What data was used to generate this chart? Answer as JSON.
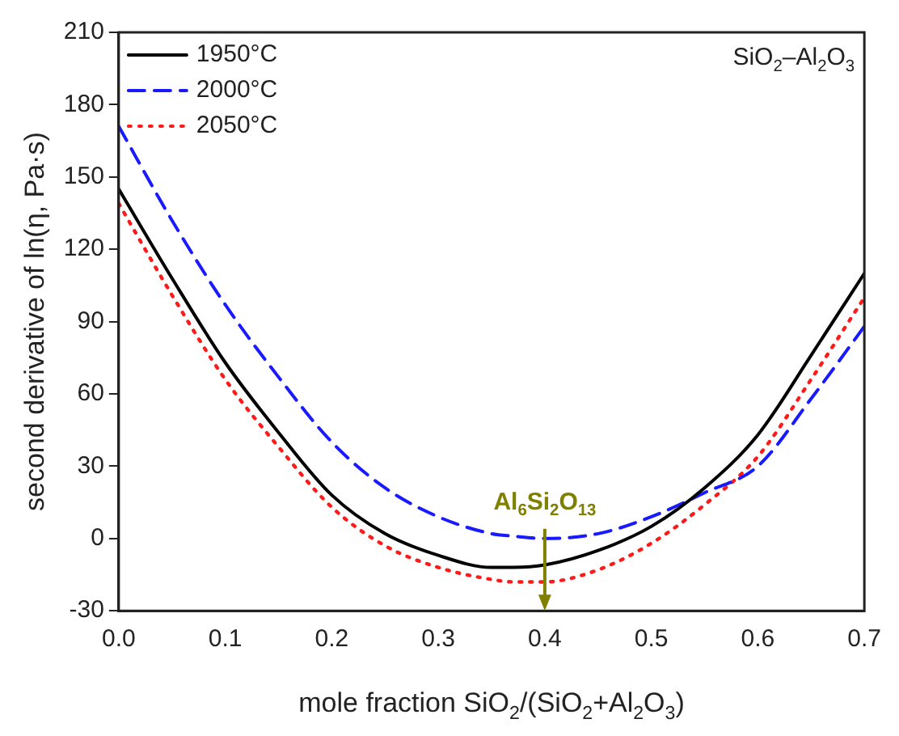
{
  "chart_data": {
    "type": "line",
    "xlabel": "mole fraction SiO$_{2}$/(SiO$_{2}$+Al$_{2}$O$_{3}$)",
    "ylabel": "second derivative of ln(η, Pa·s)",
    "x": [
      0,
      0.05,
      0.1,
      0.15,
      0.2,
      0.25,
      0.3,
      0.35,
      0.37,
      0.4,
      0.45,
      0.5,
      0.55,
      0.6,
      0.65,
      0.7
    ],
    "series": [
      {
        "name": "1950°C",
        "color": "#000000",
        "line_style": "solid",
        "values": [
          145,
          108,
          73,
          44,
          18,
          2,
          -7,
          -12,
          -12,
          -11,
          -5,
          5,
          21,
          43,
          76,
          110
        ]
      },
      {
        "name": "2000°C",
        "color": "#1a1aff",
        "line_style": "dashed",
        "values": [
          171,
          132,
          97,
          67,
          40,
          21,
          9,
          2,
          1,
          0,
          2,
          9,
          19,
          30,
          58,
          88
        ]
      },
      {
        "name": "2050°C",
        "color": "#ff1a1a",
        "line_style": "dotted",
        "values": [
          139,
          101,
          66,
          38,
          13,
          -3,
          -12,
          -17,
          -18,
          -18,
          -13,
          -2,
          14,
          34,
          66,
          100
        ]
      }
    ],
    "xlim": [
      0,
      0.7
    ],
    "xticks": [
      {
        "value": 0,
        "label": "0.0"
      },
      {
        "value": 0.1,
        "label": "0.1"
      },
      {
        "value": 0.2,
        "label": "0.2"
      },
      {
        "value": 0.3,
        "label": "0.3"
      },
      {
        "value": 0.4,
        "label": "0.4"
      },
      {
        "value": 0.5,
        "label": "0.5"
      },
      {
        "value": 0.6,
        "label": "0.6"
      },
      {
        "value": 0.7,
        "label": "0.7"
      }
    ],
    "ylim": [
      -30,
      210
    ],
    "yticks": [
      -30,
      0,
      30,
      60,
      90,
      120,
      150,
      180,
      210
    ],
    "grid": false,
    "legend": "top left",
    "marker": "none",
    "annotations": [
      "SiO$_{2}$–Al$_{2}$O$_{3}$",
      "Al$_{6}$Si$_{2}$O$_{13}$"
    ]
  }
}
